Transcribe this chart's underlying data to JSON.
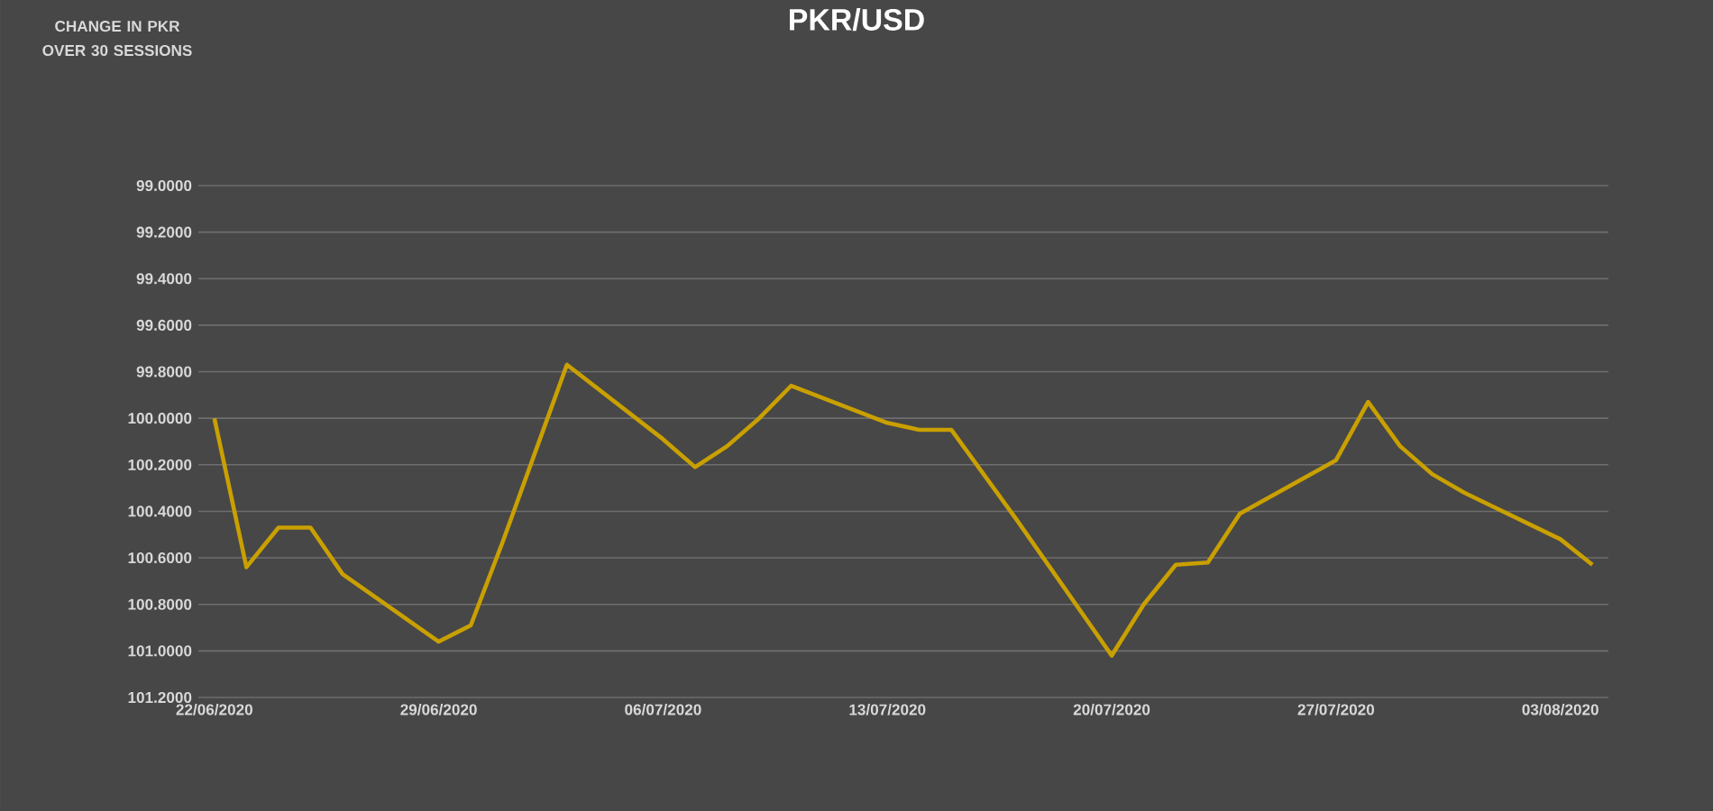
{
  "chart_data": {
    "type": "line",
    "title": "PKR/USD",
    "annotations": [
      "CHANGE IN PKR OVER 30 SESSIONS"
    ],
    "x": [
      "2020-06-22",
      "2020-06-23",
      "2020-06-24",
      "2020-06-25",
      "2020-06-26",
      "2020-06-29",
      "2020-06-30",
      "2020-07-01",
      "2020-07-02",
      "2020-07-03",
      "2020-07-06",
      "2020-07-07",
      "2020-07-08",
      "2020-07-09",
      "2020-07-10",
      "2020-07-13",
      "2020-07-14",
      "2020-07-15",
      "2020-07-16",
      "2020-07-17",
      "2020-07-20",
      "2020-07-21",
      "2020-07-22",
      "2020-07-23",
      "2020-07-24",
      "2020-07-27",
      "2020-07-28",
      "2020-07-29",
      "2020-07-30",
      "2020-07-31",
      "2020-08-03",
      "2020-08-04"
    ],
    "series": [
      {
        "color": "#c9a000",
        "values": [
          100.0,
          100.64,
          100.47,
          100.47,
          100.67,
          100.96,
          100.89,
          100.53,
          100.15,
          99.77,
          100.09,
          100.21,
          100.12,
          100.0,
          99.86,
          100.02,
          100.05,
          100.05,
          100.24,
          100.43,
          101.02,
          100.8,
          100.63,
          100.62,
          100.41,
          100.18,
          99.93,
          100.12,
          100.24,
          100.32,
          100.52,
          100.63
        ]
      }
    ],
    "xlim": [
      "2020-06-21T12:00",
      "2020-08-04T12:00"
    ],
    "xticks": [
      {
        "value": "2020-06-22",
        "label": "22/06/2020"
      },
      {
        "value": "2020-06-29",
        "label": "29/06/2020"
      },
      {
        "value": "2020-07-06",
        "label": "06/07/2020"
      },
      {
        "value": "2020-07-13",
        "label": "13/07/2020"
      },
      {
        "value": "2020-07-20",
        "label": "20/07/2020"
      },
      {
        "value": "2020-07-27",
        "label": "27/07/2020"
      },
      {
        "value": "2020-08-03",
        "label": "03/08/2020"
      }
    ],
    "ylim": [
      101.2,
      99.0
    ],
    "yticks": [
      {
        "value": 99.0,
        "label": "99.0000"
      },
      {
        "value": 99.2,
        "label": "99.2000"
      },
      {
        "value": 99.4,
        "label": "99.4000"
      },
      {
        "value": 99.6,
        "label": "99.6000"
      },
      {
        "value": 99.8,
        "label": "99.8000"
      },
      {
        "value": 100.0,
        "label": "100.0000"
      },
      {
        "value": 100.2,
        "label": "100.2000"
      },
      {
        "value": 100.4,
        "label": "100.4000"
      },
      {
        "value": 100.6,
        "label": "100.6000"
      },
      {
        "value": 100.8,
        "label": "100.8000"
      },
      {
        "value": 101.0,
        "label": "101.0000"
      },
      {
        "value": 101.2,
        "label": "101.2000"
      }
    ],
    "grid": "y",
    "marker": "none",
    "line_style": "solid"
  }
}
